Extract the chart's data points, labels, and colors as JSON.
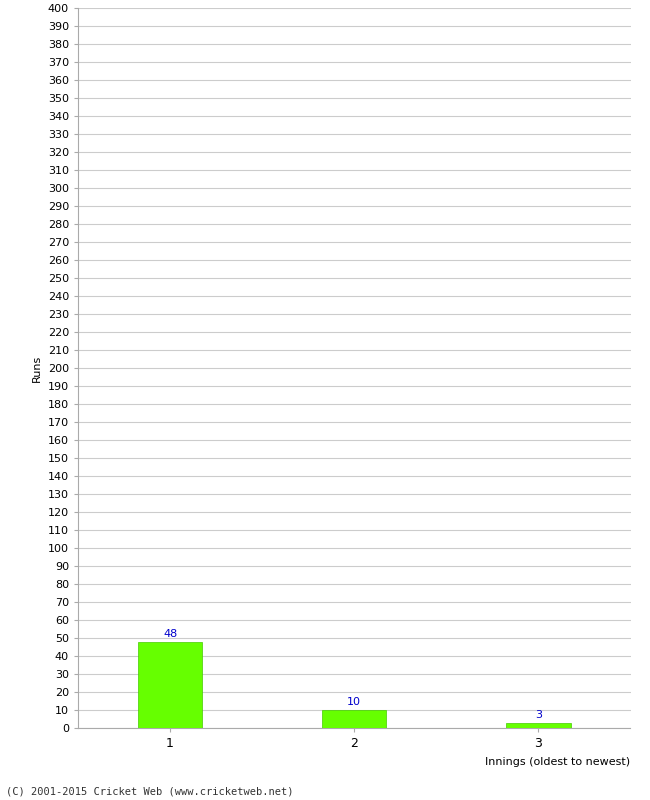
{
  "xlabel": "Innings (oldest to newest)",
  "ylabel": "Runs",
  "categories": [
    "1",
    "2",
    "3"
  ],
  "values": [
    48,
    10,
    3
  ],
  "bar_color": "#66ff00",
  "bar_edgecolor": "#44cc00",
  "label_color": "#0000cc",
  "label_fontsize": 8,
  "ylim": [
    0,
    400
  ],
  "ytick_major_step": 10,
  "background_color": "#ffffff",
  "grid_color": "#cccccc",
  "footer": "(C) 2001-2015 Cricket Web (www.cricketweb.net)"
}
